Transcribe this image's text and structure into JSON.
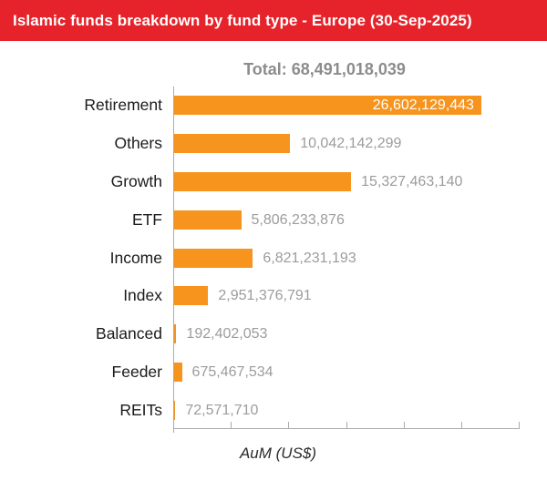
{
  "header": {
    "title": "Islamic funds breakdown by fund type - Europe (30-Sep-2025)",
    "background_color": "#E6222A",
    "text_color": "#ffffff"
  },
  "total": {
    "label": "Total: 68,491,018,039",
    "value": 68491018039
  },
  "chart_data": {
    "type": "bar",
    "orientation": "horizontal",
    "title": "Total: 68,491,018,039",
    "xlabel": "AuM (US$)",
    "ylabel": "",
    "categories": [
      "Retirement",
      "Others",
      "Growth",
      "ETF",
      "Income",
      "Index",
      "Balanced",
      "Feeder",
      "REITs"
    ],
    "values": [
      26602129443,
      10042142299,
      15327463140,
      5806233876,
      6821231193,
      2951376791,
      192402053,
      675467534,
      72571710
    ],
    "value_labels": [
      "26,602,129,443",
      "10,042,142,299",
      "15,327,463,140",
      "5,806,233,876",
      "6,821,231,193",
      "2,951,376,791",
      "192,402,053",
      "675,467,534",
      "72,571,710"
    ],
    "value_label_inside": [
      true,
      false,
      false,
      false,
      false,
      false,
      false,
      false,
      false
    ],
    "xlim": [
      0,
      30000000000
    ],
    "x_tick_step": 5000000000,
    "x_tick_labels_visible": false,
    "grid": "off",
    "legend": "none",
    "bar_color": "#F6941E",
    "value_label_color": "#9C9C9C",
    "category_label_color": "#1B1B1B",
    "axis_color": "#ABABAB"
  }
}
